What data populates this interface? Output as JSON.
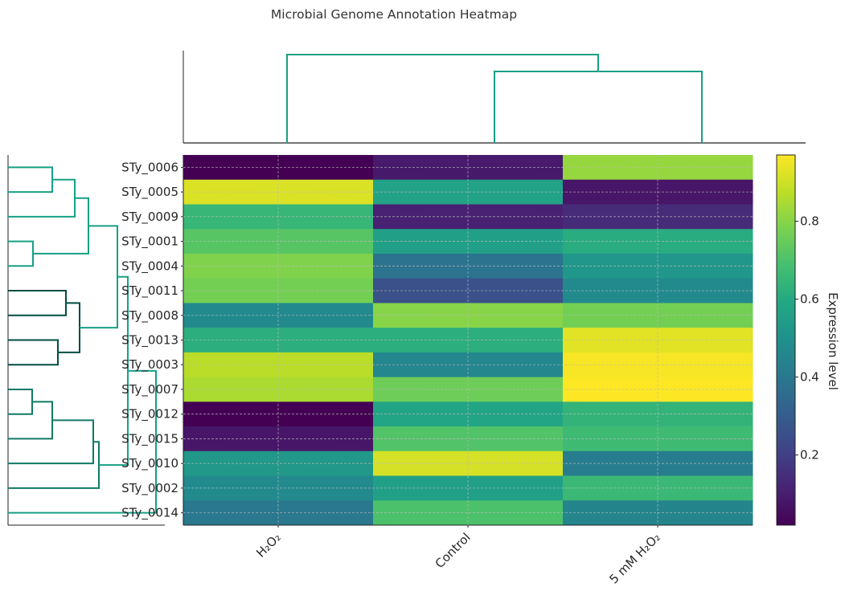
{
  "chart_data": {
    "type": "heatmap",
    "title": "Microbial Genome Annotation Heatmap",
    "columns": [
      "H₂O₂",
      "Control",
      "5 mM H₂O₂"
    ],
    "rows": [
      "STy_0006",
      "STy_0005",
      "STy_0009",
      "STy_0001",
      "STy_0004",
      "STy_0011",
      "STy_0008",
      "STy_0013",
      "STy_0003",
      "STy_0007",
      "STy_0012",
      "STy_0015",
      "STy_0010",
      "STy_0002",
      "STy_0014"
    ],
    "values": [
      [
        0.02,
        0.09,
        0.82
      ],
      [
        0.92,
        0.57,
        0.08
      ],
      [
        0.65,
        0.11,
        0.14
      ],
      [
        0.72,
        0.56,
        0.61
      ],
      [
        0.79,
        0.38,
        0.52
      ],
      [
        0.77,
        0.26,
        0.47
      ],
      [
        0.47,
        0.8,
        0.77
      ],
      [
        0.62,
        0.62,
        0.93
      ],
      [
        0.87,
        0.46,
        0.96
      ],
      [
        0.85,
        0.76,
        0.97
      ],
      [
        0.02,
        0.58,
        0.64
      ],
      [
        0.08,
        0.71,
        0.67
      ],
      [
        0.53,
        0.91,
        0.42
      ],
      [
        0.47,
        0.56,
        0.66
      ],
      [
        0.4,
        0.7,
        0.45
      ]
    ],
    "colormap": "viridis",
    "vmin": 0.02,
    "vmax": 0.97,
    "colorbar": {
      "label": "Expression level",
      "ticks": [
        0.2,
        0.4,
        0.6,
        0.8
      ],
      "tick_labels": [
        "0.2",
        "0.4",
        "0.6",
        "0.8"
      ]
    },
    "grid": true,
    "row_dendrogram": {
      "position": "left",
      "colors": [
        "#16a085",
        "#004d40",
        "#117a65"
      ]
    },
    "col_dendrogram": {
      "position": "top",
      "color": "#16a085"
    }
  }
}
